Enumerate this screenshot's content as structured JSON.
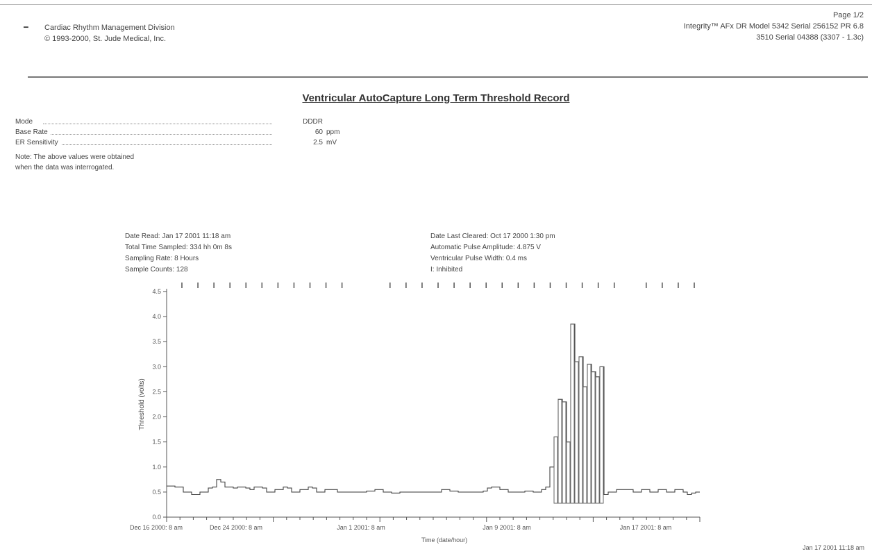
{
  "header": {
    "left_line1": "Cardiac Rhythm Management Division",
    "left_line2": "© 1993-2000, St. Jude Medical, Inc.",
    "right_line0": "Page 1/2",
    "right_line1": "Integrity™ AFx DR Model 5342 Serial 256152 PR 6.8",
    "right_line2": "3510 Serial 04388 (3307 - 1.3c)"
  },
  "report_title": "Ventricular AutoCapture Long Term Threshold Record",
  "params": [
    {
      "label": "Mode",
      "value": "DDDR",
      "unit": ""
    },
    {
      "label": "Base Rate",
      "value": "60",
      "unit": "ppm"
    },
    {
      "label": "ER Sensitivity",
      "value": "2.5",
      "unit": "mV"
    }
  ],
  "note_line1": "Note: The above values were obtained",
  "note_line2": "when the data was interrogated.",
  "info_left": [
    "Date Read:  Jan 17 2001 11:18 am",
    "Total Time Sampled:  334 hh 0m 8s",
    "Sampling Rate:  8 Hours",
    "Sample Counts:  128"
  ],
  "info_right": [
    "Date Last Cleared:  Oct 17 2000 1:30 pm",
    "Automatic Pulse Amplitude:  4.875 V",
    "Ventricular Pulse Width:  0.4 ms",
    "I: Inhibited"
  ],
  "chart_data": {
    "type": "line",
    "ylabel": "Threshold (volts)",
    "xlabel": "Time (date/hour)",
    "ylim": [
      0.0,
      4.5
    ],
    "yticks": [
      "0.0",
      "0.5",
      "1.0",
      "1.5",
      "2.0",
      "2.5",
      "3.0",
      "3.5",
      "4.0",
      "4.5"
    ],
    "x_tick_labels": [
      "Dec 16 2000: 8 am",
      "Dec 24 2000: 8 am",
      "Jan 1 2001: 8 am",
      "Jan 9 2001: 8 am",
      "Jan 17 2001: 8 am"
    ],
    "x_end_label": "Jan 17 2001 11:18 am",
    "sample_count": 128,
    "series": [
      {
        "values": [
          0.62,
          0.62,
          0.6,
          0.6,
          0.5,
          0.5,
          0.45,
          0.45,
          0.5,
          0.5,
          0.58,
          0.6,
          0.75,
          0.7,
          0.6,
          0.6,
          0.58,
          0.6,
          0.6,
          0.58,
          0.55,
          0.6,
          0.6,
          0.58,
          0.5,
          0.5,
          0.55,
          0.55,
          0.6,
          0.58,
          0.5,
          0.5,
          0.55,
          0.55,
          0.6,
          0.58,
          0.5,
          0.5,
          0.55,
          0.55,
          0.55,
          0.5,
          0.5,
          0.5,
          0.5,
          0.5,
          0.5,
          0.5,
          0.52,
          0.52,
          0.55,
          0.55,
          0.5,
          0.5,
          0.48,
          0.48,
          0.5,
          0.5,
          0.5,
          0.5,
          0.5,
          0.5,
          0.5,
          0.5,
          0.5,
          0.5,
          0.55,
          0.55,
          0.52,
          0.52,
          0.5,
          0.5,
          0.5,
          0.5,
          0.5,
          0.5,
          0.52,
          0.58,
          0.6,
          0.6,
          0.55,
          0.55,
          0.5,
          0.5,
          0.5,
          0.5,
          0.52,
          0.52,
          0.5,
          0.5,
          0.55,
          0.6,
          1.0,
          1.6,
          2.35,
          2.3,
          1.5,
          3.85,
          3.1,
          3.2,
          2.6,
          3.05,
          2.9,
          2.8,
          3.0,
          0.45,
          0.5,
          0.5,
          0.55,
          0.55,
          0.55,
          0.55,
          0.5,
          0.5,
          0.55,
          0.55,
          0.5,
          0.5,
          0.55,
          0.55,
          0.5,
          0.5,
          0.55,
          0.55,
          0.5,
          0.45,
          0.48,
          0.5
        ]
      }
    ],
    "tail_after_spike": [
      0.5,
      0.55,
      0.55,
      0.5,
      0.5,
      0.55,
      0.55,
      0.5,
      0.5,
      0.55,
      0.5,
      0.5,
      0.45,
      0.5,
      0.5,
      0.55,
      0.55,
      0.5,
      0.5,
      0.55,
      0.55,
      0.5,
      0.5,
      0.5,
      0.45,
      0.5,
      0.5,
      0.5
    ]
  },
  "marker_count": 33
}
